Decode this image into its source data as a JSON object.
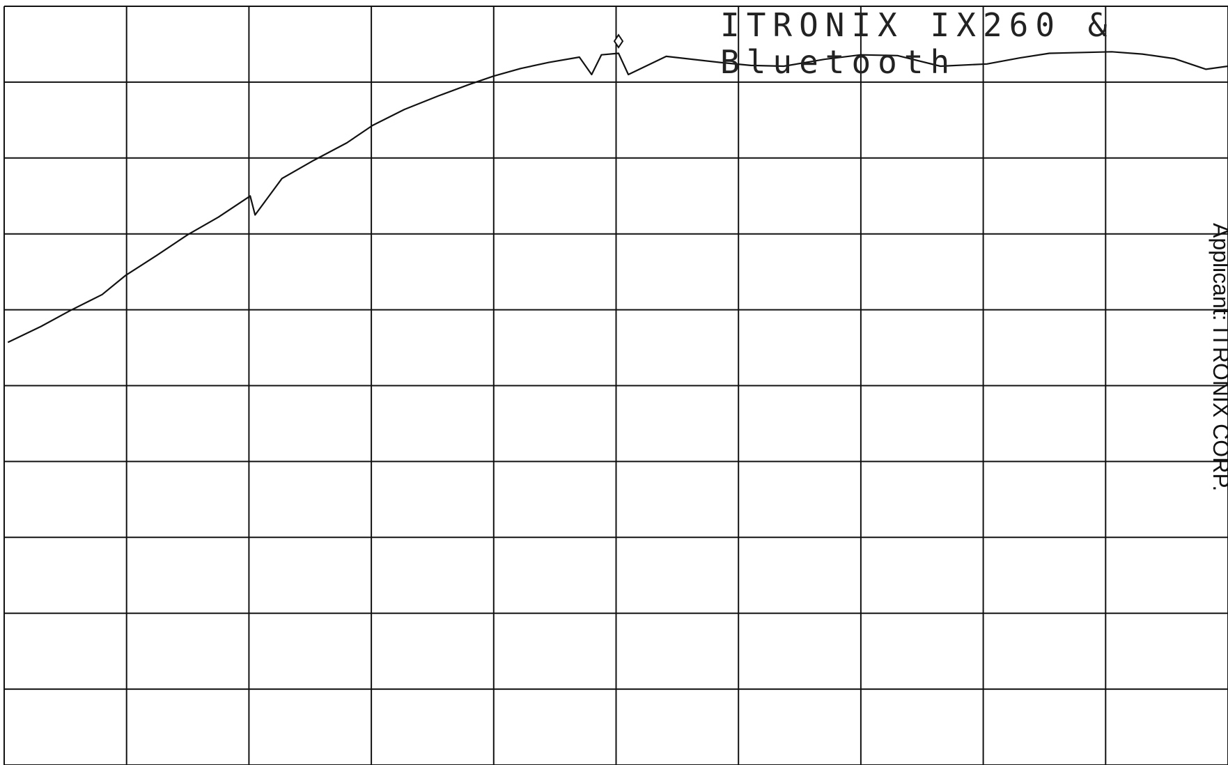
{
  "chart_data": {
    "type": "line",
    "title": "ITRONIX IX260 &",
    "subtitle": "Bluetooth",
    "annotation": "Applicant: ITRONIX CORP.",
    "x": [
      0.03,
      0.3,
      0.54,
      0.8,
      0.99,
      1.25,
      1.5,
      1.75,
      2.01,
      2.05,
      2.27,
      2.53,
      2.8,
      3.01,
      3.27,
      3.55,
      3.8,
      4.0,
      4.22,
      4.45,
      4.7,
      4.8,
      4.88,
      5.02,
      5.1,
      5.41,
      5.85,
      6.1,
      6.37,
      6.7,
      7.0,
      7.3,
      7.65,
      8.03,
      8.3,
      8.54,
      9.05,
      9.3,
      9.56,
      9.82,
      10
    ],
    "values": [
      5.57,
      5.78,
      5.99,
      6.2,
      6.45,
      6.72,
      6.99,
      7.22,
      7.5,
      7.25,
      7.73,
      7.97,
      8.2,
      8.43,
      8.64,
      8.82,
      8.97,
      9.08,
      9.18,
      9.26,
      9.33,
      9.1,
      9.36,
      9.38,
      9.1,
      9.34,
      9.26,
      9.22,
      9.21,
      9.3,
      9.36,
      9.35,
      9.21,
      9.24,
      9.32,
      9.38,
      9.4,
      9.37,
      9.31,
      9.17,
      9.21
    ],
    "color": "#111111",
    "marker": {
      "x": 5.02,
      "y": 9.54
    },
    "xlim": [
      0,
      10
    ],
    "ylim": [
      0,
      10
    ],
    "xticks": [
      0,
      1,
      2,
      3,
      4,
      5,
      6,
      7,
      8,
      9,
      10
    ],
    "yticks": [
      0,
      1,
      2,
      3,
      4,
      5,
      6,
      7,
      8,
      9,
      10
    ],
    "grid": true
  }
}
